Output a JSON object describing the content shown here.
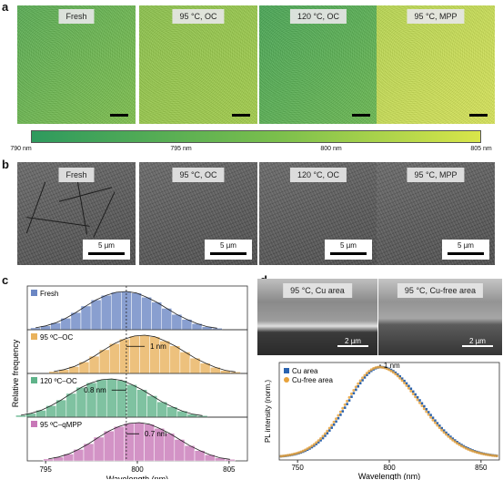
{
  "panel_labels": {
    "a": "a",
    "b": "b",
    "c": "c",
    "d": "d"
  },
  "panel_a": {
    "tiles": [
      "Fresh",
      "95 °C, OC",
      "120 °C, OC",
      "95 °C, MPP"
    ],
    "colorbar_ticks": [
      "790 nm",
      "795 nm",
      "800 nm",
      "805 nm"
    ],
    "colors": {
      "green": "#2e9a5e",
      "yellow": "#d9e64a"
    }
  },
  "panel_b": {
    "tiles": [
      "Fresh",
      "95 °C, OC",
      "120 °C, OC",
      "95 °C, MPP"
    ],
    "scale_bar": "5 µm"
  },
  "chart_data": [
    {
      "type": "bar",
      "panel": "c",
      "xlabel": "Wavelength (nm)",
      "ylabel": "Relative frequency",
      "xlim": [
        794,
        806
      ],
      "xticks": [
        "795",
        "800",
        "805"
      ],
      "series": [
        {
          "name": "Fresh",
          "color": "#6b87c4",
          "center": 799.4,
          "values": [
            0.05,
            0.1,
            0.18,
            0.3,
            0.45,
            0.62,
            0.78,
            0.9,
            0.98,
            1.0,
            0.96,
            0.85,
            0.72,
            0.56,
            0.4,
            0.27,
            0.16,
            0.08,
            0.04
          ]
        },
        {
          "name": "95 ºC–OC",
          "color": "#e9b25c",
          "center": 800.4,
          "annotation": "1 nm",
          "values": [
            0.05,
            0.1,
            0.18,
            0.3,
            0.45,
            0.62,
            0.78,
            0.9,
            0.98,
            1.0,
            0.96,
            0.85,
            0.72,
            0.56,
            0.4,
            0.27,
            0.16,
            0.08,
            0.04
          ]
        },
        {
          "name": "120 ºC–OC",
          "color": "#5fb38a",
          "center": 798.6,
          "annotation": "0.8 nm",
          "values": [
            0.05,
            0.1,
            0.18,
            0.3,
            0.45,
            0.62,
            0.78,
            0.9,
            0.98,
            1.0,
            0.96,
            0.85,
            0.72,
            0.56,
            0.4,
            0.27,
            0.16,
            0.08,
            0.04
          ]
        },
        {
          "name": "95 ºC–qMPP",
          "color": "#c878b8",
          "center": 800.1,
          "annotation": "0.7 nm",
          "values": [
            0.05,
            0.1,
            0.18,
            0.3,
            0.45,
            0.62,
            0.78,
            0.9,
            0.98,
            1.0,
            0.96,
            0.85,
            0.72,
            0.56,
            0.4,
            0.27,
            0.16,
            0.08,
            0.04
          ]
        }
      ]
    },
    {
      "type": "line",
      "panel": "d",
      "xlabel": "Wavelength (nm)",
      "ylabel": "PL intensity (norm.)",
      "xlim": [
        740,
        860
      ],
      "xticks": [
        "750",
        "800",
        "850"
      ],
      "annotation": "1 nm",
      "legend": "top-left",
      "series": [
        {
          "name": "Cu area",
          "color": "#2a63b0",
          "peak": 795.5
        },
        {
          "name": "Cu-free area",
          "color": "#e7a23b",
          "peak": 794.5
        }
      ]
    }
  ],
  "panel_d_sem": {
    "tiles": [
      "95 °C, Cu area",
      "95 °C, Cu-free area"
    ],
    "scale_bar": "2 µm"
  }
}
